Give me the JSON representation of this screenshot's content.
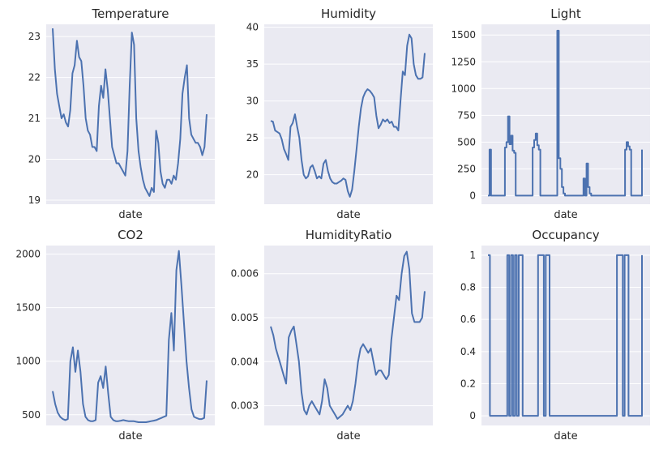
{
  "figure": {
    "background": "#ffffff",
    "panel_bg": "#eaeaf2",
    "grid_color": "#ffffff",
    "line_color": "#4c72b0"
  },
  "chart_data": [
    {
      "type": "line",
      "title": "Temperature",
      "xlabel": "date",
      "ylabel": "",
      "ylim": [
        18.9,
        23.3
      ],
      "yticks": [
        19,
        20,
        21,
        22,
        23
      ],
      "grid": true,
      "series": [
        {
          "values": [
            23.2,
            22.2,
            21.6,
            21.3,
            21.0,
            21.1,
            20.9,
            20.8,
            21.2,
            22.1,
            22.3,
            22.9,
            22.5,
            22.4,
            21.8,
            21.0,
            20.7,
            20.6,
            20.3,
            20.3,
            20.2,
            21.3,
            21.8,
            21.5,
            22.2,
            21.7,
            21.0,
            20.3,
            20.1,
            19.9,
            19.9,
            19.8,
            19.7,
            19.6,
            20.2,
            21.8,
            23.1,
            22.8,
            21.0,
            20.2,
            19.8,
            19.5,
            19.3,
            19.2,
            19.1,
            19.3,
            19.2,
            20.7,
            20.4,
            19.7,
            19.4,
            19.3,
            19.5,
            19.5,
            19.4,
            19.6,
            19.5,
            19.9,
            20.5,
            21.6,
            22.0,
            22.3,
            21.0,
            20.6,
            20.5,
            20.4,
            20.4,
            20.3,
            20.1,
            20.3,
            21.1
          ]
        }
      ]
    },
    {
      "type": "line",
      "title": "Humidity",
      "xlabel": "date",
      "ylabel": "",
      "ylim": [
        16.0,
        40.4
      ],
      "yticks": [
        20,
        25,
        30,
        35,
        40
      ],
      "grid": true,
      "series": [
        {
          "values": [
            27.3,
            27.2,
            26.0,
            25.8,
            25.6,
            24.8,
            23.5,
            22.8,
            22.0,
            26.5,
            27.0,
            28.2,
            26.5,
            25.0,
            22.0,
            20.0,
            19.5,
            19.8,
            21.0,
            21.3,
            20.5,
            19.5,
            19.8,
            19.5,
            21.5,
            22.0,
            20.5,
            19.5,
            19.0,
            18.8,
            18.8,
            19.0,
            19.2,
            19.5,
            19.3,
            17.8,
            17.0,
            18.0,
            20.5,
            23.5,
            26.5,
            29.0,
            30.5,
            31.2,
            31.6,
            31.4,
            31.0,
            30.5,
            28.0,
            26.3,
            26.8,
            27.5,
            27.2,
            27.5,
            27.0,
            27.2,
            26.5,
            26.5,
            26.0,
            30.0,
            34.0,
            33.5,
            37.5,
            39.0,
            38.5,
            35.0,
            33.5,
            33.0,
            33.0,
            33.2,
            36.5
          ]
        }
      ]
    },
    {
      "type": "line",
      "title": "Light",
      "xlabel": "date",
      "ylabel": "",
      "ylim": [
        -80,
        1600
      ],
      "yticks": [
        0,
        250,
        500,
        750,
        1000,
        1250,
        1500
      ],
      "grid": true,
      "series": [
        {
          "values": [
            0,
            430,
            0,
            0,
            0,
            0,
            0,
            0,
            0,
            0,
            0,
            450,
            500,
            740,
            480,
            560,
            420,
            400,
            0,
            0,
            0,
            0,
            0,
            0,
            0,
            0,
            0,
            0,
            0,
            450,
            520,
            580,
            470,
            430,
            0,
            0,
            0,
            0,
            0,
            0,
            0,
            0,
            0,
            0,
            0,
            1540,
            350,
            250,
            80,
            20,
            0,
            0,
            0,
            0,
            0,
            0,
            0,
            0,
            0,
            0,
            0,
            0,
            160,
            0,
            300,
            80,
            20,
            0,
            0,
            0,
            0,
            0,
            0,
            0,
            0,
            0,
            0,
            0,
            0,
            0,
            0,
            0,
            0,
            0,
            0,
            0,
            0,
            0,
            0,
            430,
            500,
            460,
            430,
            0,
            0,
            0,
            0,
            0,
            0,
            0,
            430
          ]
        }
      ]
    },
    {
      "type": "line",
      "title": "CO2",
      "xlabel": "date",
      "ylabel": "",
      "ylim": [
        400,
        2080
      ],
      "yticks": [
        500,
        1000,
        1500,
        2000
      ],
      "grid": true,
      "series": [
        {
          "values": [
            720,
            600,
            520,
            480,
            460,
            450,
            460,
            1000,
            1130,
            900,
            1100,
            900,
            600,
            480,
            450,
            440,
            440,
            450,
            800,
            860,
            750,
            950,
            700,
            480,
            450,
            440,
            440,
            445,
            450,
            445,
            440,
            440,
            440,
            435,
            430,
            430,
            430,
            430,
            435,
            440,
            445,
            450,
            460,
            470,
            480,
            490,
            1200,
            1450,
            1100,
            1850,
            2030,
            1700,
            1350,
            1000,
            750,
            550,
            480,
            470,
            460,
            460,
            470,
            820
          ]
        }
      ]
    },
    {
      "type": "line",
      "title": "HumidityRatio",
      "xlabel": "date",
      "ylabel": "",
      "ylim": [
        0.00255,
        0.00664
      ],
      "yticks": [
        0.003,
        0.004,
        0.005,
        0.006
      ],
      "grid": true,
      "series": [
        {
          "values": [
            0.0048,
            0.0046,
            0.0043,
            0.0041,
            0.0039,
            0.0037,
            0.0035,
            0.00455,
            0.0047,
            0.0048,
            0.0044,
            0.004,
            0.0033,
            0.0029,
            0.0028,
            0.003,
            0.0031,
            0.003,
            0.0029,
            0.0028,
            0.0031,
            0.0036,
            0.0034,
            0.003,
            0.0029,
            0.0028,
            0.0027,
            0.00275,
            0.0028,
            0.0029,
            0.003,
            0.0029,
            0.0031,
            0.0035,
            0.004,
            0.0043,
            0.0044,
            0.0043,
            0.0042,
            0.0043,
            0.004,
            0.0037,
            0.0038,
            0.0038,
            0.0037,
            0.0036,
            0.0037,
            0.0045,
            0.005,
            0.0055,
            0.0054,
            0.006,
            0.0064,
            0.0065,
            0.0061,
            0.0051,
            0.0049,
            0.0049,
            0.0049,
            0.005,
            0.0056
          ]
        }
      ]
    },
    {
      "type": "line",
      "title": "Occupancy",
      "xlabel": "date",
      "ylabel": "",
      "ylim": [
        -0.06,
        1.06
      ],
      "yticks": [
        0.0,
        0.2,
        0.4,
        0.6,
        0.8,
        1.0
      ],
      "grid": true,
      "series": [
        {
          "values": [
            1,
            0,
            0,
            0,
            0,
            0,
            0,
            0,
            0,
            0,
            1,
            0,
            1,
            0,
            1,
            0,
            1,
            1,
            0,
            0,
            0,
            0,
            0,
            0,
            0,
            0,
            1,
            1,
            1,
            0,
            1,
            1,
            0,
            0,
            0,
            0,
            0,
            0,
            0,
            0,
            0,
            0,
            0,
            0,
            0,
            0,
            0,
            0,
            0,
            0,
            0,
            0,
            0,
            0,
            0,
            0,
            0,
            0,
            0,
            0,
            0,
            0,
            0,
            0,
            0,
            0,
            0,
            1,
            1,
            1,
            0,
            1,
            1,
            0,
            0,
            0,
            0,
            0,
            0,
            0,
            1
          ]
        }
      ]
    }
  ]
}
